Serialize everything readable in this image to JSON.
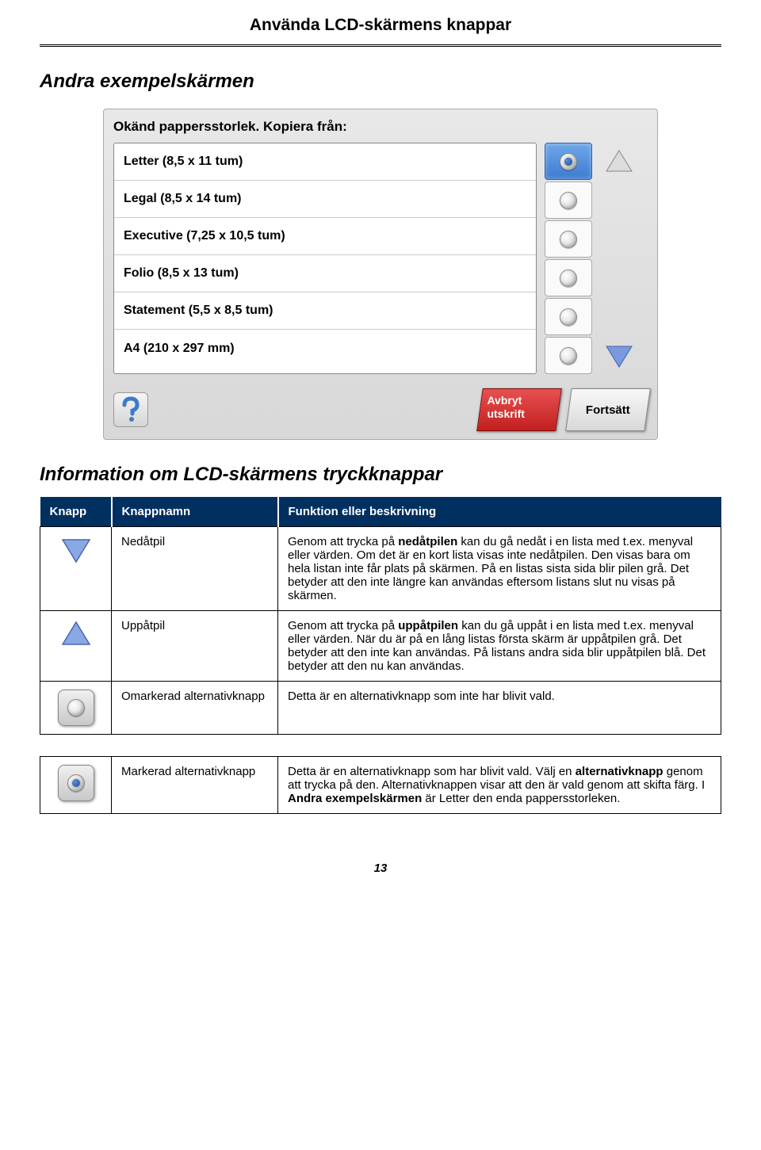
{
  "header": {
    "title": "Använda LCD-skärmens knappar"
  },
  "section1": {
    "heading": "Andra exempelskärmen"
  },
  "lcd": {
    "title": "Okänd pappersstorlek. Kopiera från:",
    "options": [
      {
        "label": "Letter (8,5 x 11 tum)",
        "selected": true
      },
      {
        "label": "Legal (8,5 x 14 tum)",
        "selected": false
      },
      {
        "label": "Executive (7,25 x 10,5 tum)",
        "selected": false
      },
      {
        "label": "Folio (8,5 x 13 tum)",
        "selected": false
      },
      {
        "label": "Statement (5,5 x 8,5 tum)",
        "selected": false
      },
      {
        "label": "A4 (210 x 297 mm)",
        "selected": false
      }
    ],
    "cancel": "Avbryt\nutskrift",
    "continue": "Fortsätt",
    "arrow_blue": "#6a8fd8",
    "arrow_grey": "#cfcfcf"
  },
  "section2": {
    "heading": "Information om LCD-skärmens tryckknappar"
  },
  "table": {
    "headers": [
      "Knapp",
      "Knappnamn",
      "Funktion eller beskrivning"
    ],
    "rows": [
      {
        "icon": "down-arrow-blue",
        "name": "Nedåtpil",
        "desc_html": "Genom att trycka på <b>nedåtpilen</b> kan du gå nedåt i en lista med t.ex. menyval eller värden. Om det är en kort lista visas inte nedåtpilen. Den visas bara om hela listan inte får plats på skärmen. På en listas sista sida blir pilen grå. Det betyder att den inte längre kan användas eftersom listans slut nu visas på skärmen."
      },
      {
        "icon": "up-arrow-blue",
        "name": "Uppåtpil",
        "desc_html": "Genom att trycka på <b>uppåtpilen</b> kan du gå uppåt i en lista med t.ex. menyval eller värden. När du är på en lång listas första skärm är uppåtpilen grå. Det betyder att den inte kan användas. På listans andra sida blir uppåtpilen blå. Det betyder att den nu kan användas."
      },
      {
        "icon": "radio-unchecked",
        "name": "Omarkerad alternativknapp",
        "desc_html": "Detta är en alternativknapp som inte har blivit vald."
      },
      {
        "gap": true
      },
      {
        "icon": "radio-checked",
        "name": "Markerad alternativknapp",
        "desc_html": "Detta är en alternativknapp som har blivit vald. Välj en <b>alternativknapp</b> genom att trycka på den. Alternativknappen visar att den är vald genom att skifta färg. I <b>Andra exempelskärmen</b> är Letter den enda pappersstorleken."
      }
    ]
  },
  "page_number": "13",
  "colors": {
    "header_bg": "#003060",
    "blue_arrow": "#6a8fd8",
    "grey_arrow": "#cfcfcf",
    "red_btn": "#c21f1f"
  }
}
